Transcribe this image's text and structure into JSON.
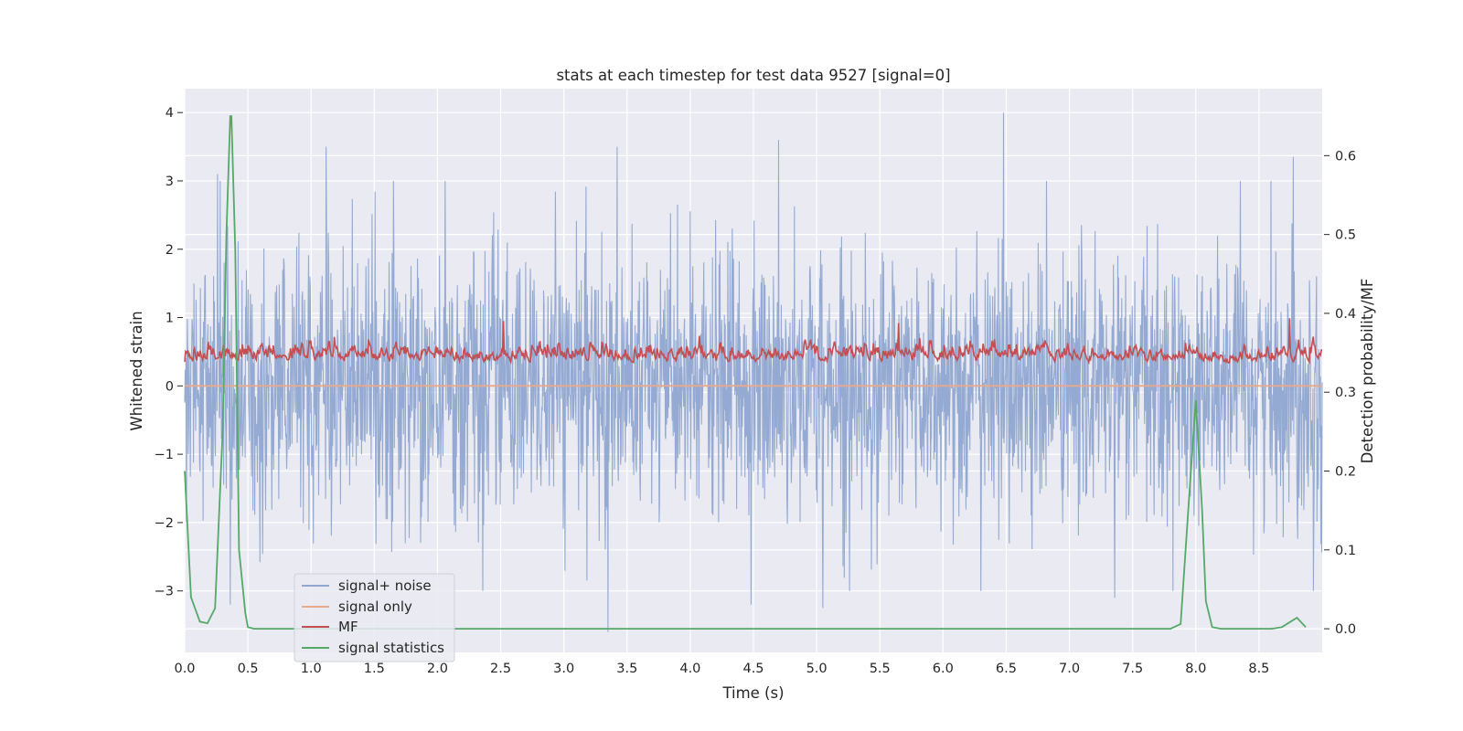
{
  "chart_data": {
    "type": "line",
    "title": "stats at each timestep for test data 9527 [signal=0]",
    "xlabel": "Time (s)",
    "ylabel": "Whitened strain",
    "y2label": "Detection probability/MF",
    "xlim": [
      0.0,
      9.0
    ],
    "ylim": [
      -3.9,
      4.35
    ],
    "y2lim": [
      -0.03,
      0.685
    ],
    "grid": true,
    "legend_position": "lower-left",
    "x_ticks": [
      "0.0",
      "0.5",
      "1.0",
      "1.5",
      "2.0",
      "2.5",
      "3.0",
      "3.5",
      "4.0",
      "4.5",
      "5.0",
      "5.5",
      "6.0",
      "6.5",
      "7.0",
      "7.5",
      "8.0",
      "8.5"
    ],
    "y_ticks": [
      "−3",
      "−2",
      "−1",
      "0",
      "1",
      "2",
      "3",
      "4"
    ],
    "y2_ticks": [
      "0.0",
      "0.1",
      "0.2",
      "0.3",
      "0.4",
      "0.5",
      "0.6"
    ],
    "series": [
      {
        "name": "signal+ noise",
        "axis": "left",
        "color": "#8fa6d0",
        "description_values": "dense whitened noise, roughly within [-3.6, 4.0]",
        "spikes": [
          {
            "x": 0.26,
            "y": 3.1
          },
          {
            "x": 0.36,
            "y": -3.2
          },
          {
            "x": 1.12,
            "y": 3.5
          },
          {
            "x": 3.35,
            "y": -3.6
          },
          {
            "x": 3.42,
            "y": 3.5
          },
          {
            "x": 4.7,
            "y": 3.6
          },
          {
            "x": 4.48,
            "y": -3.2
          },
          {
            "x": 5.05,
            "y": -3.25
          },
          {
            "x": 6.48,
            "y": 4.0
          },
          {
            "x": 7.36,
            "y": -3.1
          },
          {
            "x": 8.77,
            "y": 3.35
          },
          {
            "x": 8.93,
            "y": -3.0
          }
        ]
      },
      {
        "name": "signal only",
        "axis": "left",
        "color": "#e8a98c",
        "x": [
          0.0,
          9.0
        ],
        "y": [
          0.0,
          0.0
        ]
      },
      {
        "name": "MF",
        "axis": "left",
        "color": "#c44e52",
        "description_values": "fluctuates roughly between 0.05 and 0.9",
        "peaks": [
          {
            "x": 2.52,
            "y": 0.95
          },
          {
            "x": 5.65,
            "y": 0.92
          },
          {
            "x": 8.74,
            "y": 0.99
          }
        ]
      },
      {
        "name": "signal statistics",
        "axis": "right",
        "color": "#55a868",
        "x": [
          0.0,
          0.05,
          0.12,
          0.18,
          0.24,
          0.3,
          0.33,
          0.36,
          0.37,
          0.4,
          0.43,
          0.48,
          0.5,
          0.55,
          1.0,
          2.0,
          3.0,
          4.0,
          5.0,
          6.0,
          7.0,
          7.8,
          7.88,
          7.94,
          8.0,
          8.05,
          8.08,
          8.13,
          8.2,
          8.3,
          8.6,
          8.68,
          8.74,
          8.8,
          8.87
        ],
        "y": [
          0.2,
          0.04,
          0.009,
          0.007,
          0.026,
          0.25,
          0.5,
          0.65,
          0.65,
          0.48,
          0.1,
          0.02,
          0.002,
          0.0,
          0.0,
          0.0,
          0.0,
          0.0,
          0.0,
          0.0,
          0.0,
          0.0,
          0.006,
          0.15,
          0.29,
          0.15,
          0.035,
          0.002,
          0.0,
          0.0,
          0.0,
          0.002,
          0.008,
          0.014,
          0.002
        ]
      }
    ]
  }
}
